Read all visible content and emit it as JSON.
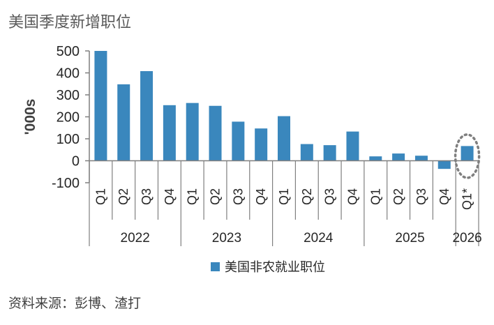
{
  "title": "美国季度新增职位",
  "source": "资料来源：彭博、渣打",
  "colors": {
    "bar": "#3a87bd",
    "axis": "#7f7f7f",
    "highlight": "#7f7f7f"
  },
  "chart_data": {
    "type": "bar",
    "title": "美国季度新增职位",
    "ylabel": "'000s",
    "ylim": [
      -100,
      500
    ],
    "yticks": [
      500,
      400,
      300,
      200,
      100,
      0,
      -100
    ],
    "categories": [
      "Q1",
      "Q2",
      "Q3",
      "Q4",
      "Q1",
      "Q2",
      "Q3",
      "Q4",
      "Q1",
      "Q2",
      "Q3",
      "Q4",
      "Q1",
      "Q2",
      "Q3",
      "Q4",
      "Q1*"
    ],
    "groups": [
      {
        "label": "2022",
        "count": 4
      },
      {
        "label": "2023",
        "count": 4
      },
      {
        "label": "2024",
        "count": 4
      },
      {
        "label": "2025",
        "count": 4
      },
      {
        "label": "2026",
        "count": 1
      }
    ],
    "series": [
      {
        "name": "美国非农就业职位",
        "values": [
          500,
          348,
          408,
          253,
          263,
          250,
          178,
          147,
          203,
          76,
          71,
          133,
          20,
          33,
          23,
          -37,
          67
        ]
      }
    ],
    "highlight_index": 16,
    "legend": "bottom-center",
    "grid": false
  }
}
